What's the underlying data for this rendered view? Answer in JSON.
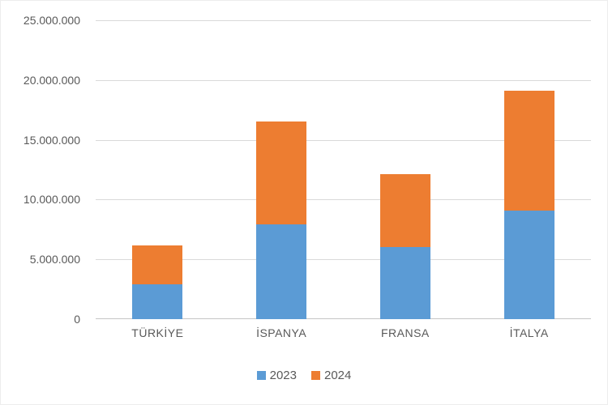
{
  "chart_data": {
    "type": "bar",
    "stacked": true,
    "title": "",
    "xlabel": "",
    "ylabel": "",
    "categories": [
      "TÜRKİYE",
      "İSPANYA",
      "FRANSA",
      "İTALYA"
    ],
    "series": [
      {
        "name": "2023",
        "color": "#5b9bd5",
        "values": [
          2900000,
          7900000,
          6000000,
          9100000
        ]
      },
      {
        "name": "2024",
        "color": "#ed7d31",
        "values": [
          3300000,
          8600000,
          6100000,
          10000000
        ]
      }
    ],
    "ylim": [
      0,
      25000000
    ],
    "ytick_interval": 5000000,
    "ytick_labels": [
      "0",
      "5.000.000",
      "10.000.000",
      "15.000.000",
      "20.000.000",
      "25.000.000"
    ],
    "grid": true,
    "legend_position": "bottom"
  },
  "colors": {
    "background": "#ffffff",
    "gridline": "#d9d9d9",
    "axis_text": "#595959",
    "series_2023": "#5b9bd5",
    "series_2024": "#ed7d31"
  }
}
